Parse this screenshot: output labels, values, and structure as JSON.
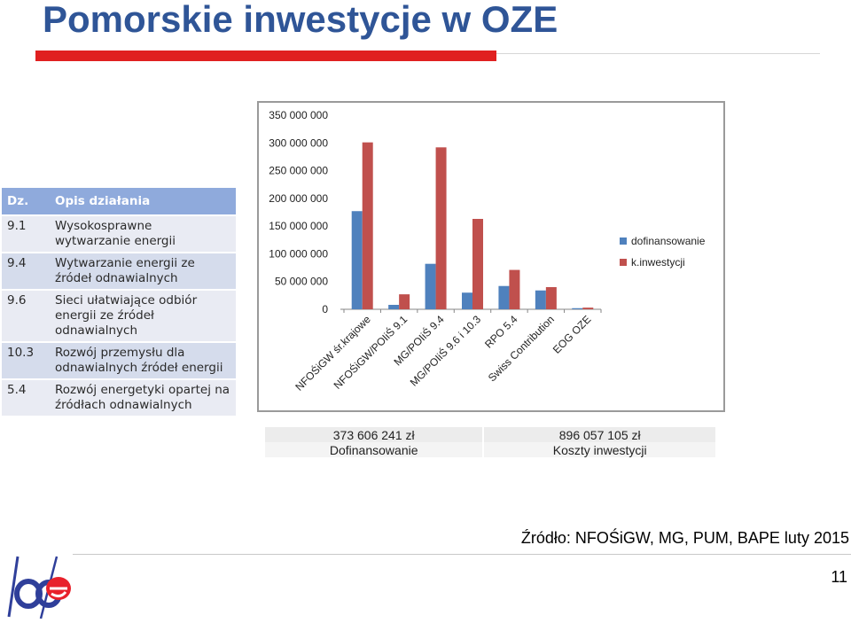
{
  "page": {
    "title": "Pomorskie inwestycje w OZE",
    "source": "Źródło: NFOŚiGW, MG, PUM, BAPE luty 2015",
    "page_number": "11",
    "logo_text": "bpe"
  },
  "table": {
    "header_code": "Dz.",
    "header_desc": "Opis działania",
    "rows": [
      {
        "code": "9.1",
        "desc": "Wysokosprawne wytwarzanie energii"
      },
      {
        "code": "9.4",
        "desc": "Wytwarzanie energii ze źródeł odnawialnych"
      },
      {
        "code": "9.6",
        "desc": "Sieci ułatwiające odbiór energii ze źródeł odnawialnych"
      },
      {
        "code": "10.3",
        "desc": "Rozwój przemysłu dla odnawialnych źródeł energii"
      },
      {
        "code": "5.4",
        "desc": "Rozwój energetyki opartej na źródłach odnawialnych"
      }
    ]
  },
  "summary": {
    "dofinansowanie_value": "373 606 241 zł",
    "dofinansowanie_label": "Dofinansowanie",
    "koszty_value": "896 057 105 zł",
    "koszty_label": "Koszty inwestycji"
  },
  "colors": {
    "title": "#2f5597",
    "series_dofinansowanie": "#4f81bd",
    "series_inwestycje": "#c0504d",
    "accent_red": "#e02020"
  },
  "chart_data": {
    "type": "bar",
    "categories": [
      "NFOŚiGW śr.krajowe",
      "NFOŚiGW/POIiŚ 9.1",
      "MG/POIiŚ 9.4",
      "MG/POIiŚ 9.6 i 10.3",
      "RPO 5.4",
      "Swiss Contribution",
      "EOG OZE"
    ],
    "series": [
      {
        "name": "dofinansowanie",
        "values": [
          177000000,
          8000000,
          82000000,
          30000000,
          42000000,
          34000000,
          2000000
        ]
      },
      {
        "name": "k.inwestycji",
        "values": [
          301000000,
          27000000,
          292000000,
          163000000,
          71000000,
          40000000,
          3000000
        ]
      }
    ],
    "ylim": [
      0,
      350000000
    ],
    "yticks": [
      0,
      50000000,
      100000000,
      150000000,
      200000000,
      250000000,
      300000000,
      350000000
    ],
    "ytick_labels": [
      "0",
      "50 000 000",
      "100 000 000",
      "150 000 000",
      "200 000 000",
      "250 000 000",
      "300 000 000",
      "350 000 000"
    ],
    "legend_position": "right",
    "grid": false
  }
}
